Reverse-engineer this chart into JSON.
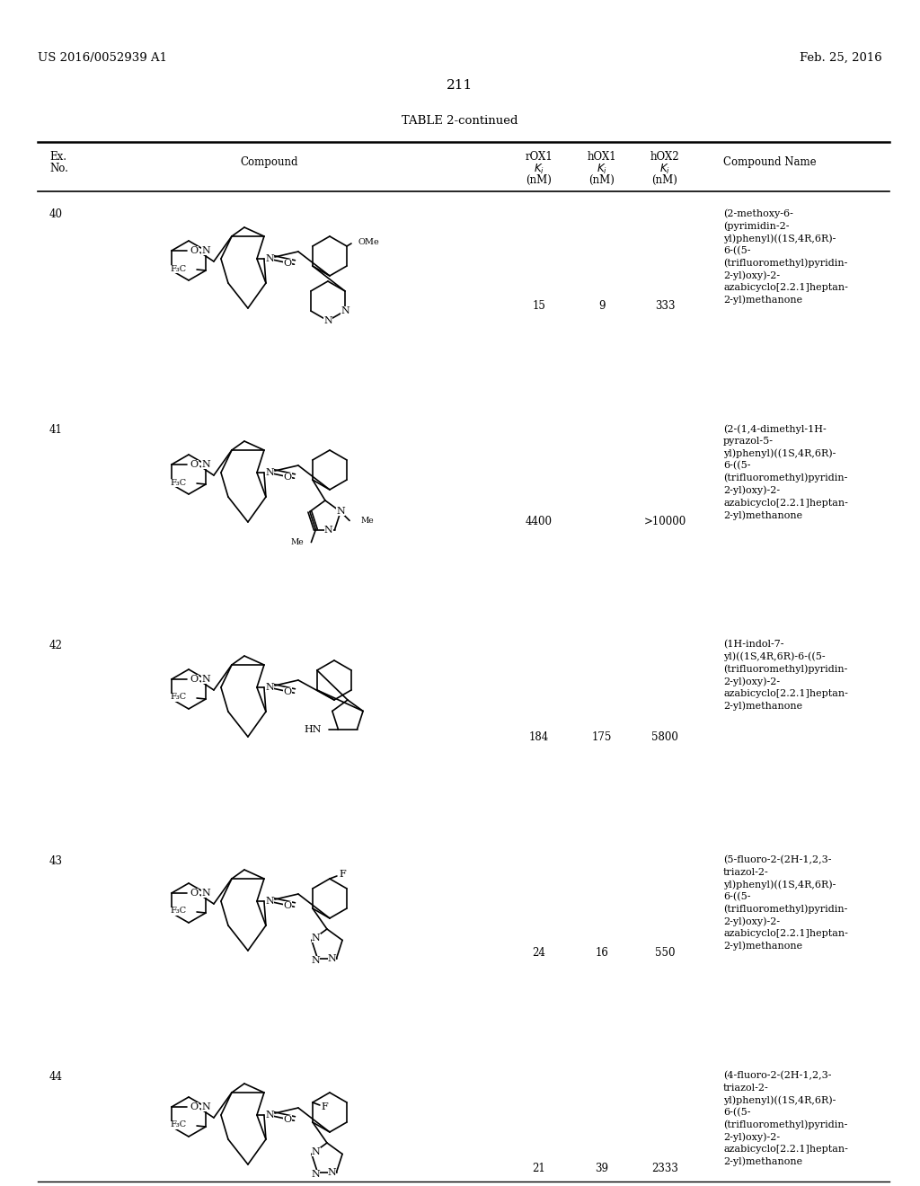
{
  "background_color": "#ffffff",
  "header_left": "US 2016/0052939 A1",
  "header_right": "Feb. 25, 2016",
  "page_number": "211",
  "table_title": "TABLE 2-continued",
  "rows": [
    {
      "ex_no": "40",
      "rox1": "15",
      "hox1": "9",
      "hox2": "333",
      "name": "(2-methoxy-6-\n(pyrimidin-2-\nyl)phenyl)((1S,4R,6R)-\n6-((5-\n(trifluoromethyl)pyridin-\n2-yl)oxy)-2-\nazabicyclo[2.2.1]heptan-\n2-yl)methanone"
    },
    {
      "ex_no": "41",
      "rox1": "4400",
      "hox1": "",
      "hox2": ">10000",
      "name": "(2-(1,4-dimethyl-1H-\npyrazol-5-\nyl)phenyl)((1S,4R,6R)-\n6-((5-\n(trifluoromethyl)pyridin-\n2-yl)oxy)-2-\nazabicyclo[2.2.1]heptan-\n2-yl)methanone"
    },
    {
      "ex_no": "42",
      "rox1": "184",
      "hox1": "175",
      "hox2": "5800",
      "name": "(1H-indol-7-\nyl)((1S,4R,6R)-6-((5-\n(trifluoromethyl)pyridin-\n2-yl)oxy)-2-\nazabicyclo[2.2.1]heptan-\n2-yl)methanone"
    },
    {
      "ex_no": "43",
      "rox1": "24",
      "hox1": "16",
      "hox2": "550",
      "name": "(5-fluoro-2-(2H-1,2,3-\ntriazol-2-\nyl)phenyl)((1S,4R,6R)-\n6-((5-\n(trifluoromethyl)pyridin-\n2-yl)oxy)-2-\nazabicyclo[2.2.1]heptan-\n2-yl)methanone"
    },
    {
      "ex_no": "44",
      "rox1": "21",
      "hox1": "39",
      "hox2": "2333",
      "name": "(4-fluoro-2-(2H-1,2,3-\ntriazol-2-\nyl)phenyl)((1S,4R,6R)-\n6-((5-\n(trifluoromethyl)pyridin-\n2-yl)oxy)-2-\nazabicyclo[2.2.1]heptan-\n2-yl)methanone"
    }
  ]
}
